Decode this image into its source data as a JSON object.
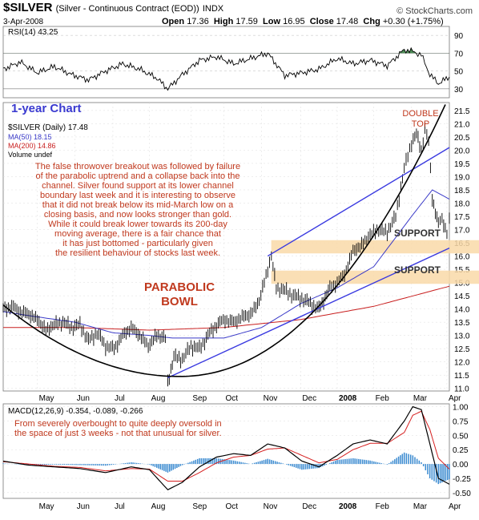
{
  "header": {
    "symbol": "$SILVER",
    "subtitle": "(Silver - Continuous Contract (EOD))",
    "exchange": "INDX",
    "date": "3-Apr-2008",
    "open_label": "Open",
    "open": "17.36",
    "high_label": "High",
    "high": "17.59",
    "low_label": "Low",
    "low": "16.95",
    "close_label": "Close",
    "close": "17.48",
    "chg_label": "Chg",
    "chg": "+0.30 (+1.75%)",
    "credit": "© StockCharts.com"
  },
  "chart_data": [
    {
      "type": "line",
      "name": "rsi-panel",
      "legend": "RSI(14) 43.25",
      "y_ticks": [
        90,
        70,
        50,
        30
      ],
      "ylim": [
        20,
        100
      ],
      "overbought": 70,
      "oversold": 30,
      "x": [
        "2007-04-03",
        "2007-04-17",
        "2007-05-01",
        "2007-05-15",
        "2007-05-29",
        "2007-06-12",
        "2007-06-26",
        "2007-07-10",
        "2007-07-24",
        "2007-08-07",
        "2007-08-16",
        "2007-08-28",
        "2007-09-11",
        "2007-09-25",
        "2007-10-09",
        "2007-10-23",
        "2007-11-06",
        "2007-11-20",
        "2007-12-04",
        "2007-12-18",
        "2008-01-02",
        "2008-01-15",
        "2008-01-29",
        "2008-02-12",
        "2008-02-26",
        "2008-03-04",
        "2008-03-11",
        "2008-03-18",
        "2008-03-25",
        "2008-04-03"
      ],
      "values": [
        52,
        60,
        48,
        55,
        46,
        40,
        50,
        58,
        52,
        42,
        30,
        46,
        62,
        66,
        58,
        64,
        70,
        45,
        48,
        52,
        64,
        58,
        62,
        56,
        74,
        72,
        68,
        46,
        36,
        43.25
      ]
    },
    {
      "type": "line",
      "name": "price-panel",
      "title": "1-year Chart",
      "legend": [
        "$SILVER (Daily) 17.48",
        "MA(50) 18.15",
        "MA(200) 14.86",
        "Volume undef"
      ],
      "y_ticks": [
        11.0,
        11.5,
        12.0,
        12.5,
        13.0,
        13.5,
        14.0,
        14.5,
        15.0,
        15.5,
        16.0,
        16.5,
        17.0,
        17.5,
        18.0,
        18.5,
        19.0,
        19.5,
        20.0,
        20.5,
        21.0,
        21.5
      ],
      "ylim": [
        10.9,
        21.8
      ],
      "x_ticks": [
        "May",
        "Jun",
        "Jul",
        "Aug",
        "Sep",
        "Oct",
        "Nov",
        "Dec",
        "2008",
        "Feb",
        "Mar",
        "Apr"
      ],
      "x_tick_dates": [
        "2007-05-01",
        "2007-06-01",
        "2007-07-02",
        "2007-08-01",
        "2007-09-04",
        "2007-10-01",
        "2007-11-01",
        "2007-12-03",
        "2008-01-02",
        "2008-02-01",
        "2008-03-03",
        "2008-04-01"
      ],
      "series": [
        {
          "name": "$SILVER",
          "x": [
            "2007-04-03",
            "2007-04-10",
            "2007-04-17",
            "2007-04-24",
            "2007-05-01",
            "2007-05-08",
            "2007-05-15",
            "2007-05-22",
            "2007-05-29",
            "2007-06-05",
            "2007-06-12",
            "2007-06-19",
            "2007-06-26",
            "2007-07-03",
            "2007-07-10",
            "2007-07-17",
            "2007-07-24",
            "2007-07-31",
            "2007-08-07",
            "2007-08-14",
            "2007-08-16",
            "2007-08-21",
            "2007-08-28",
            "2007-09-04",
            "2007-09-11",
            "2007-09-18",
            "2007-09-25",
            "2007-10-02",
            "2007-10-09",
            "2007-10-16",
            "2007-10-23",
            "2007-10-30",
            "2007-11-06",
            "2007-11-09",
            "2007-11-13",
            "2007-11-20",
            "2007-11-27",
            "2007-12-04",
            "2007-12-11",
            "2007-12-18",
            "2007-12-27",
            "2008-01-02",
            "2008-01-08",
            "2008-01-15",
            "2008-01-22",
            "2008-01-29",
            "2008-02-05",
            "2008-02-12",
            "2008-02-19",
            "2008-02-26",
            "2008-03-03",
            "2008-03-07",
            "2008-03-11",
            "2008-03-14",
            "2008-03-17",
            "2008-03-20",
            "2008-03-25",
            "2008-03-28",
            "2008-04-01",
            "2008-04-03"
          ],
          "values": [
            14.0,
            14.1,
            13.9,
            13.8,
            13.6,
            13.2,
            13.4,
            13.5,
            13.3,
            13.4,
            12.8,
            13.1,
            12.6,
            12.5,
            13.0,
            13.3,
            13.0,
            12.6,
            13.0,
            12.9,
            11.2,
            12.2,
            12.1,
            12.6,
            12.5,
            13.0,
            13.4,
            13.6,
            13.5,
            13.7,
            13.8,
            14.3,
            15.5,
            16.0,
            14.8,
            14.7,
            14.5,
            14.4,
            14.2,
            14.0,
            14.8,
            15.0,
            15.3,
            16.2,
            16.4,
            16.8,
            17.0,
            16.9,
            17.5,
            19.3,
            20.3,
            20.6,
            20.0,
            20.8,
            20.3,
            18.2,
            17.2,
            17.4,
            16.9,
            17.48
          ]
        },
        {
          "name": "MA(50)",
          "x": [
            "2007-04-03",
            "2007-05-01",
            "2007-06-01",
            "2007-07-02",
            "2007-08-01",
            "2007-08-20",
            "2007-09-04",
            "2007-10-01",
            "2007-11-01",
            "2007-12-03",
            "2008-01-02",
            "2008-02-01",
            "2008-03-03",
            "2008-03-20",
            "2008-04-03"
          ],
          "values": [
            13.9,
            13.7,
            13.5,
            13.1,
            13.0,
            12.9,
            12.9,
            12.9,
            13.3,
            14.2,
            14.8,
            15.6,
            17.5,
            18.5,
            18.15
          ]
        },
        {
          "name": "MA(200)",
          "x": [
            "2007-04-03",
            "2007-06-01",
            "2007-08-01",
            "2007-10-01",
            "2007-12-03",
            "2008-02-01",
            "2008-04-03"
          ],
          "values": [
            13.3,
            13.3,
            13.2,
            13.3,
            13.6,
            14.1,
            14.86
          ]
        }
      ],
      "annotations": {
        "body": [
          "The false throwover breakout was followed by failure",
          "of the parabolic uptrend and a collapse back into the",
          "channel. Silver found support at its lower channel",
          "boundary last week and it is interesting to observe",
          "that it did not break below its mid-March low on a",
          "closing basis, and now looks stronger than gold.",
          "While it could break lower towards its 200-day",
          "moving average, there is a fair chance that",
          "it has just bottomed - particularly given",
          "the resilient behaviour of stocks last week."
        ],
        "parabolic": [
          "PARABOLIC",
          "BOWL"
        ],
        "double_top": [
          "DOUBLE",
          "TOP"
        ],
        "support": "SUPPORT",
        "support_zones": [
          [
            16.1,
            16.6
          ],
          [
            14.95,
            15.45
          ]
        ]
      }
    },
    {
      "type": "line",
      "name": "macd-panel",
      "legend": "MACD(12,26,9) -0.354, -0.089, -0.266",
      "note": [
        "From severely overbought to quite deeply oversold in",
        "the space of just 3 weeks - not that unusual for silver."
      ],
      "y_ticks": [
        "1.00",
        "0.75",
        "0.50",
        "0.25",
        "0.00",
        "-0.25",
        "-0.50"
      ],
      "ylim": [
        -0.6,
        1.05
      ],
      "x": [
        "2007-04-03",
        "2007-04-24",
        "2007-05-15",
        "2007-06-05",
        "2007-06-26",
        "2007-07-17",
        "2007-08-01",
        "2007-08-16",
        "2007-08-28",
        "2007-09-11",
        "2007-09-25",
        "2007-10-09",
        "2007-10-23",
        "2007-11-06",
        "2007-11-20",
        "2007-12-04",
        "2007-12-18",
        "2008-01-02",
        "2008-01-15",
        "2008-01-29",
        "2008-02-12",
        "2008-02-26",
        "2008-03-04",
        "2008-03-11",
        "2008-03-18",
        "2008-03-25",
        "2008-04-03"
      ],
      "series": [
        {
          "name": "MACD",
          "values": [
            0.05,
            -0.02,
            -0.05,
            -0.08,
            -0.15,
            -0.05,
            -0.1,
            -0.45,
            -0.32,
            -0.05,
            0.12,
            0.18,
            0.15,
            0.35,
            0.28,
            0.05,
            -0.05,
            0.15,
            0.35,
            0.42,
            0.35,
            0.75,
            1.0,
            0.95,
            0.35,
            -0.25,
            -0.354
          ]
        },
        {
          "name": "Signal",
          "values": [
            0.04,
            0.0,
            -0.04,
            -0.06,
            -0.12,
            -0.08,
            -0.09,
            -0.3,
            -0.3,
            -0.15,
            0.02,
            0.12,
            0.15,
            0.26,
            0.28,
            0.15,
            0.02,
            0.08,
            0.25,
            0.36,
            0.36,
            0.55,
            0.85,
            0.92,
            0.6,
            0.1,
            -0.089
          ]
        },
        {
          "name": "Histogram",
          "values": [
            0.01,
            -0.02,
            -0.01,
            -0.02,
            -0.03,
            0.03,
            -0.01,
            -0.15,
            -0.02,
            0.1,
            0.1,
            0.06,
            0.0,
            0.09,
            0.0,
            -0.1,
            -0.07,
            0.07,
            0.1,
            0.06,
            -0.01,
            0.2,
            0.15,
            0.03,
            -0.25,
            -0.35,
            -0.266
          ]
        }
      ],
      "x_ticks": [
        "May",
        "Jun",
        "Jul",
        "Aug",
        "Sep",
        "Oct",
        "Nov",
        "Dec",
        "2008",
        "Feb",
        "Mar",
        "Apr"
      ]
    }
  ],
  "colors": {
    "price": "#000000",
    "ma50": "#3a3ac8",
    "ma200": "#c81e1e",
    "rsi": "#000000",
    "rsi_fill": "#2f7a3a",
    "channel": "#3a3ae0",
    "parabola": "#000000",
    "support_band": "#f9d9a8",
    "annotation_red": "#c0391e",
    "title_blue": "#3a3ad0",
    "macd": "#000000",
    "signal": "#d62020",
    "histogram": "#3a8ad0"
  }
}
